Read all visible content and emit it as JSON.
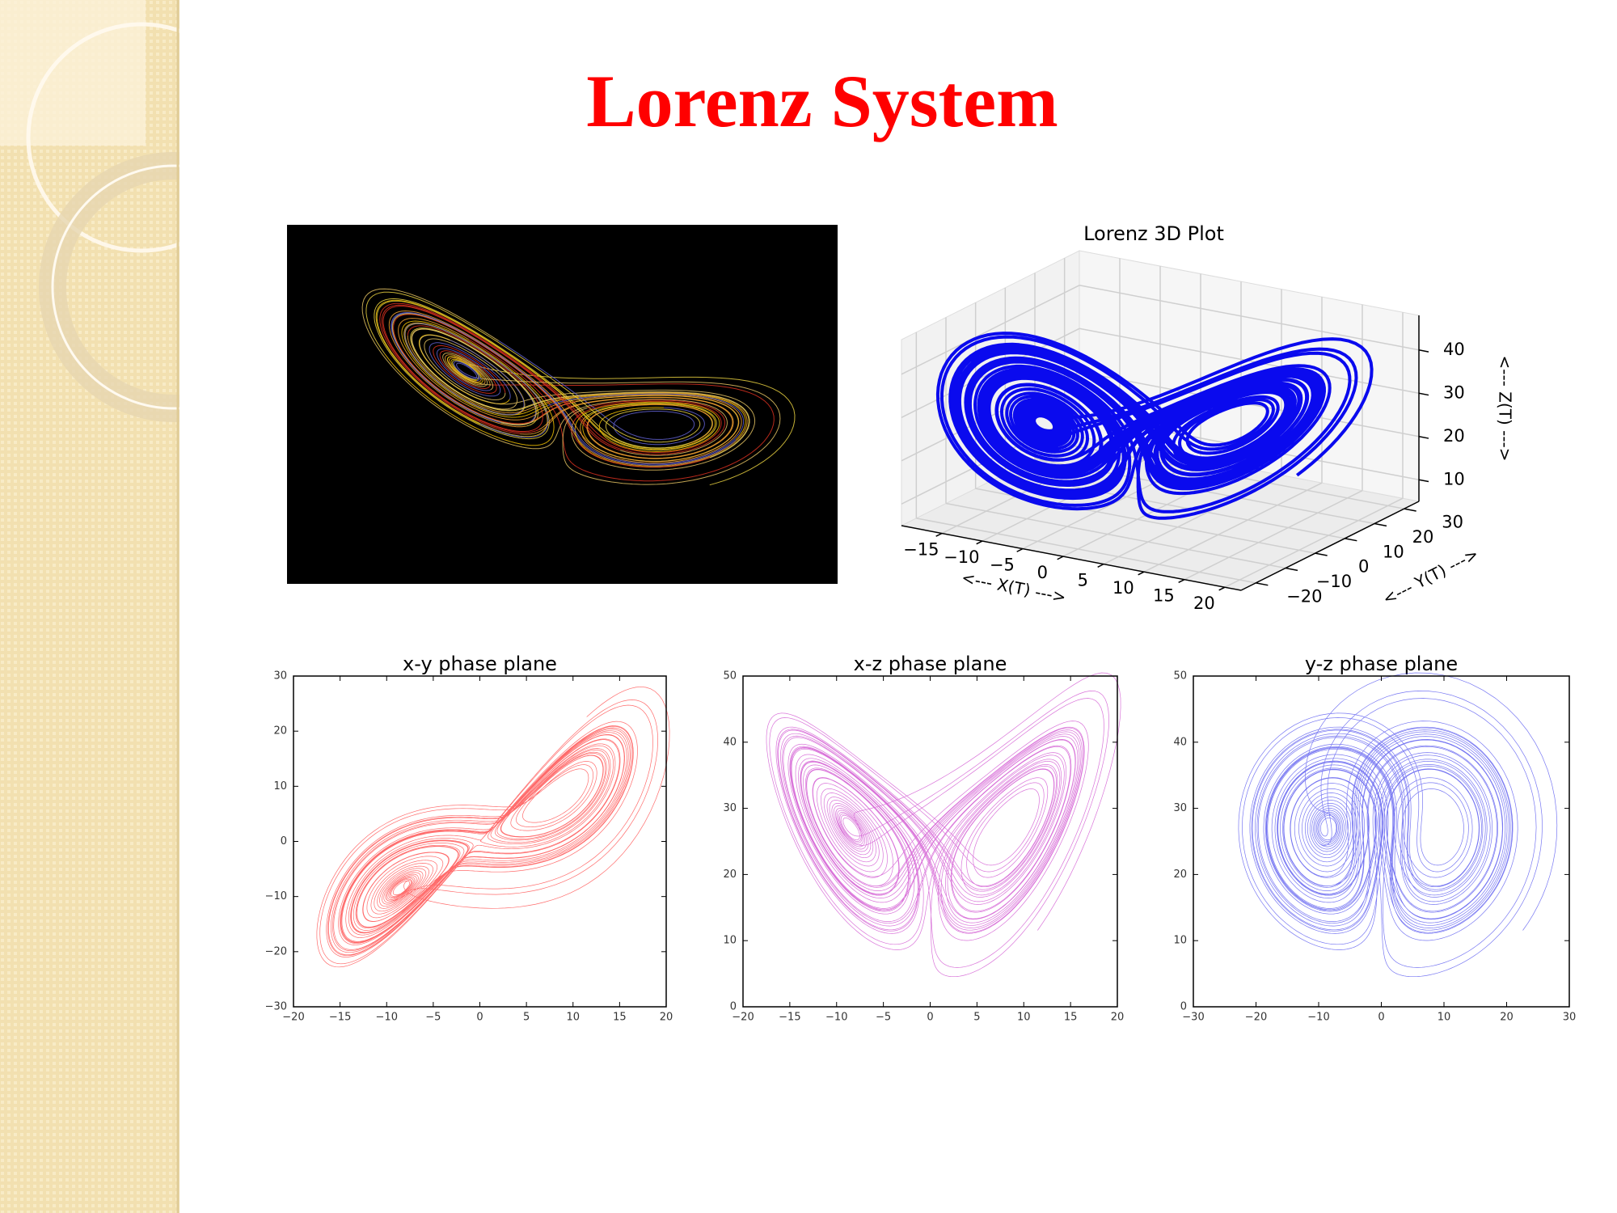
{
  "slide_title": "Lorenz System",
  "plot_3d": {
    "title": "Lorenz 3D Plot",
    "xlabel": "<--- X(T) --->",
    "ylabel": "<--- Y(T) --->",
    "zlabel": "<--- Z(T) --->",
    "color": "#0a0aee",
    "xlim": [
      -20,
      22
    ],
    "ylim": [
      -25,
      35
    ],
    "zlim": [
      5,
      48
    ],
    "xticks": [
      {
        "value": -15,
        "label": "−15"
      },
      {
        "value": -10,
        "label": "−10"
      },
      {
        "value": -5,
        "label": "−5"
      },
      0,
      5,
      10,
      15,
      20
    ],
    "yticks": [
      {
        "value": -20,
        "label": "−20"
      },
      {
        "value": -10,
        "label": "−10"
      },
      0,
      10,
      20,
      30
    ],
    "zticks": [
      10,
      20,
      30,
      40
    ]
  },
  "phase_planes": [
    {
      "title": "x-y phase plane",
      "color": "#ff3b3b",
      "xlim": [
        -20,
        20
      ],
      "ylim": [
        -30,
        30
      ],
      "xticks": [
        {
          "value": -20,
          "label": "−20"
        },
        {
          "value": -15,
          "label": "−15"
        },
        {
          "value": -10,
          "label": "−10"
        },
        {
          "value": -5,
          "label": "−5"
        },
        0,
        5,
        10,
        15,
        20
      ],
      "yticks": [
        {
          "value": -30,
          "label": "−30"
        },
        {
          "value": -20,
          "label": "−20"
        },
        {
          "value": -10,
          "label": "−10"
        },
        0,
        10,
        20,
        30
      ]
    },
    {
      "title": "x-z phase plane",
      "color": "#cc44cc",
      "xlim": [
        -20,
        20
      ],
      "ylim": [
        0,
        50
      ],
      "xticks": [
        {
          "value": -20,
          "label": "−20"
        },
        {
          "value": -15,
          "label": "−15"
        },
        {
          "value": -10,
          "label": "−10"
        },
        {
          "value": -5,
          "label": "−5"
        },
        0,
        5,
        10,
        15,
        20
      ],
      "yticks": [
        0,
        10,
        20,
        30,
        40,
        50
      ]
    },
    {
      "title": "y-z phase plane",
      "color": "#4a4aee",
      "xlim": [
        -30,
        30
      ],
      "ylim": [
        0,
        50
      ],
      "xticks": [
        {
          "value": -30,
          "label": "−30"
        },
        {
          "value": -20,
          "label": "−20"
        },
        {
          "value": -10,
          "label": "−10"
        },
        0,
        10,
        20,
        30
      ],
      "yticks": [
        0,
        10,
        20,
        30,
        40,
        50
      ]
    }
  ]
}
